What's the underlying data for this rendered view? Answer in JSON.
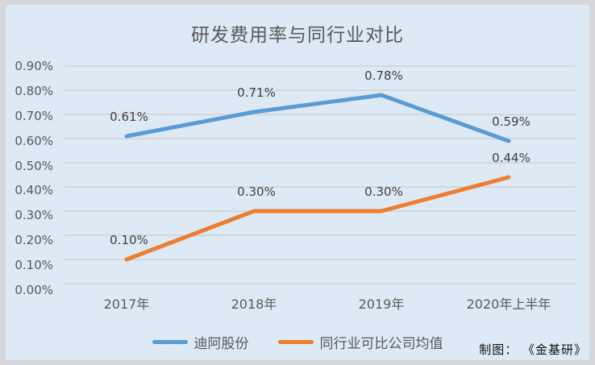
{
  "credit": "制图： 《金基研》",
  "colors": {
    "card_background": "#dde9f5",
    "frame": "#d6d7da",
    "gridline": "#d4d7db",
    "axis_text": "#595959",
    "data_label_text": "#3f3f3f",
    "series_blue": "#5b9bd5",
    "series_orange": "#ed7d31"
  },
  "chart_data": {
    "type": "line",
    "title": "研发费用率与同行业对比",
    "categories": [
      "2017年",
      "2018年",
      "2019年",
      "2020年上半年"
    ],
    "series": [
      {
        "name": "迪阿股份",
        "color": "#5b9bd5",
        "values": [
          0.61,
          0.71,
          0.78,
          0.59
        ],
        "labels": [
          "0.61%",
          "0.71%",
          "0.78%",
          "0.59%"
        ]
      },
      {
        "name": "同行业可比公司均值",
        "color": "#ed7d31",
        "values": [
          0.1,
          0.3,
          0.3,
          0.44
        ],
        "labels": [
          "0.10%",
          "0.30%",
          "0.30%",
          "0.44%"
        ]
      }
    ],
    "xlabel": "",
    "ylabel": "",
    "ylim": [
      0,
      0.9
    ],
    "ytick_step": 0.1,
    "ytick_labels": [
      "0.00%",
      "0.10%",
      "0.20%",
      "0.30%",
      "0.40%",
      "0.50%",
      "0.60%",
      "0.70%",
      "0.80%",
      "0.90%"
    ],
    "grid": true,
    "legend_position": "bottom"
  },
  "legend": {
    "items": [
      {
        "label": "迪阿股份",
        "color": "#5b9bd5"
      },
      {
        "label": "同行业可比公司均值",
        "color": "#ed7d31"
      }
    ]
  }
}
